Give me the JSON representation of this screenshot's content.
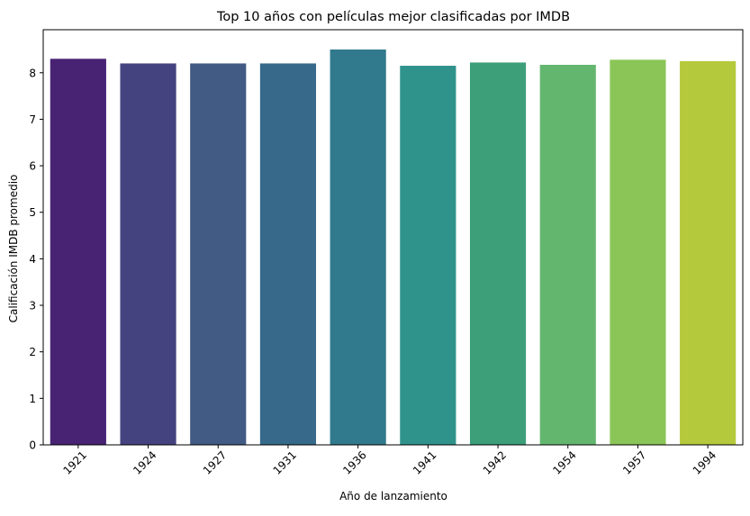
{
  "chart_data": {
    "type": "bar",
    "title": "Top 10 años con películas mejor clasificadas por IMDB",
    "xlabel": "Año de lanzamiento",
    "ylabel": "Calificación IMDB promedio",
    "categories": [
      "1921",
      "1924",
      "1927",
      "1931",
      "1936",
      "1941",
      "1942",
      "1954",
      "1957",
      "1994"
    ],
    "values": [
      8.3,
      8.2,
      8.2,
      8.2,
      8.5,
      8.15,
      8.22,
      8.17,
      8.28,
      8.25
    ],
    "colors": [
      "#482374",
      "#45437f",
      "#425b85",
      "#36698a",
      "#31798c",
      "#2f938c",
      "#3d9e7a",
      "#63b66e",
      "#8bc557",
      "#b4c93b"
    ],
    "ylim": [
      0,
      8.925
    ],
    "yticks": [
      0,
      1,
      2,
      3,
      4,
      5,
      6,
      7,
      8
    ],
    "grid": false,
    "legend": "none"
  }
}
